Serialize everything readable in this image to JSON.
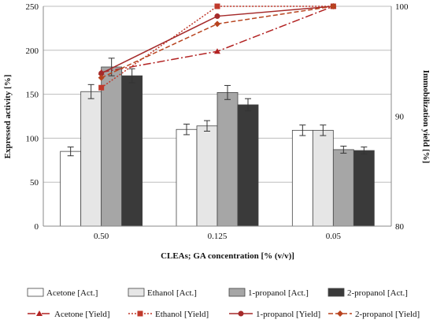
{
  "chart_data": {
    "type": "bar",
    "title": "",
    "xlabel": "CLEAs; GA concentration [% (v/v)]",
    "ylabel": "Expressed activity [%]",
    "y2label": "Immobilization yield [%]",
    "categories": [
      "0.50",
      "0.125",
      "0.05"
    ],
    "ylim": [
      0,
      250
    ],
    "y_ticks": [
      0,
      50,
      100,
      150,
      200,
      250
    ],
    "y2lim": [
      80,
      100
    ],
    "y2_ticks": [
      80,
      90,
      100
    ],
    "grid": "horizontal",
    "legend_position": "bottom",
    "bar_series": [
      {
        "name": "Acetone [Act.]",
        "color": "#ffffff",
        "values": [
          85,
          110,
          109
        ],
        "errors": [
          5,
          6,
          6
        ]
      },
      {
        "name": "Ethanol [Act.]",
        "color": "#e6e6e6",
        "values": [
          153,
          114,
          109
        ],
        "errors": [
          8,
          6,
          6
        ]
      },
      {
        "name": "1-propanol [Act.]",
        "color": "#a6a6a6",
        "values": [
          181,
          152,
          87
        ],
        "errors": [
          10,
          8,
          4
        ]
      },
      {
        "name": "2-propanol [Act.]",
        "color": "#3a3a3a",
        "values": [
          171,
          138,
          86
        ],
        "errors": [
          8,
          7,
          4
        ]
      }
    ],
    "line_series": [
      {
        "name": "Acetone [Yield]",
        "color": "#b22222",
        "marker": "triangle",
        "dash": "10 3 2 3",
        "values": [
          94.0,
          95.9,
          100.0
        ]
      },
      {
        "name": "Ethanol [Yield]",
        "color": "#c0392b",
        "marker": "square",
        "dash": "2 2",
        "values": [
          92.6,
          100.0,
          100.0
        ]
      },
      {
        "name": "1-propanol [Yield]",
        "color": "#a52a2a",
        "marker": "circle",
        "dash": "",
        "values": [
          93.9,
          99.1,
          100.0
        ]
      },
      {
        "name": "2-propanol [Yield]",
        "color": "#b8431e",
        "marker": "diamond",
        "dash": "6 3",
        "values": [
          93.5,
          98.4,
          100.0
        ]
      }
    ]
  }
}
